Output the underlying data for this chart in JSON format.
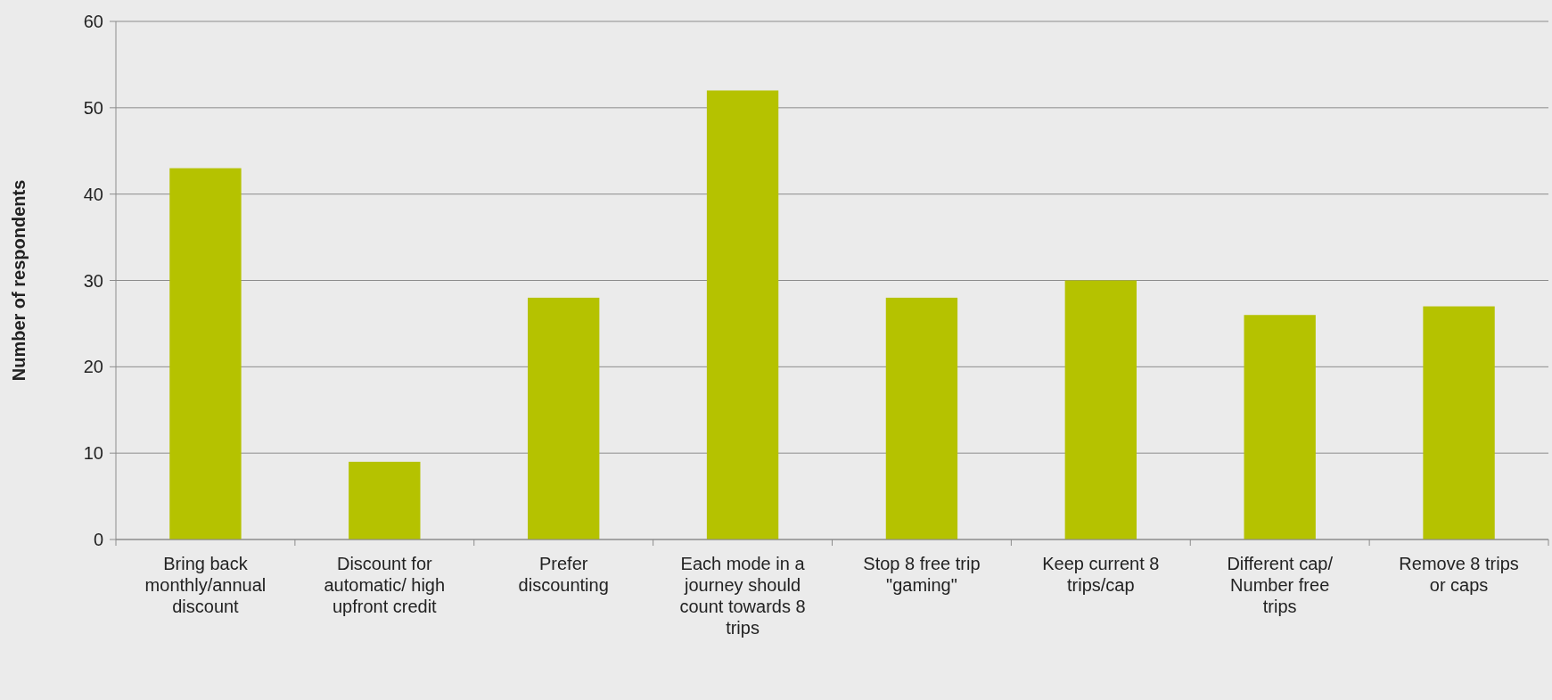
{
  "chart_data": {
    "type": "bar",
    "ylabel": "Number of respondents",
    "categories": [
      "Bring back monthly/annual discount",
      "Discount for automatic/ high upfront credit",
      "Prefer discounting",
      "Each mode in a journey should count towards 8 trips",
      "Stop 8 free trip \"gaming\"",
      "Keep current 8 trips/cap",
      "Different cap/ Number free trips",
      "Remove 8 trips or caps"
    ],
    "values": [
      43,
      9,
      28,
      52,
      28,
      30,
      26,
      27
    ],
    "color": "#b5c200",
    "ylim": [
      0,
      60
    ],
    "yticks": [
      0,
      10,
      20,
      30,
      40,
      50,
      60
    ],
    "grid": "y"
  }
}
